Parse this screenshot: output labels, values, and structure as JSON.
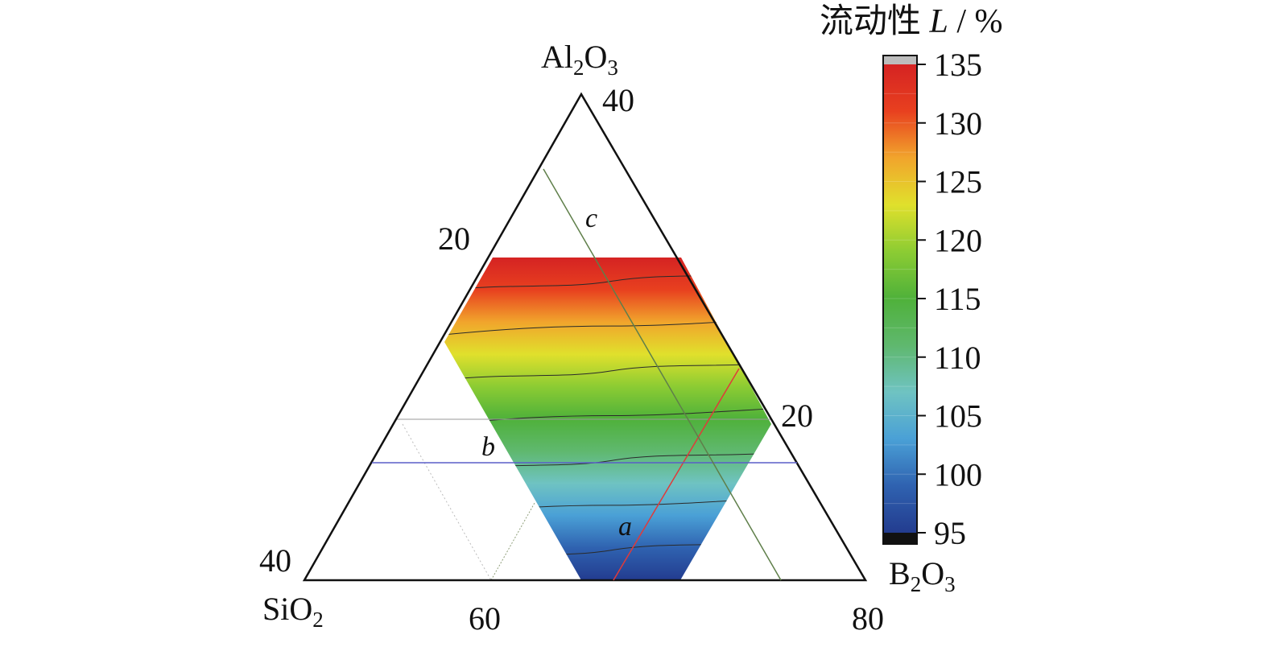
{
  "chart_data": {
    "type": "heatmap",
    "title": "流动性 L / %",
    "title_parts": {
      "prefix": "流动性 ",
      "var": "L",
      "unit": " / %"
    },
    "components": [
      {
        "name": "Al2O3",
        "base": "Al",
        "sub1": "2",
        "mid": "O",
        "sub2": "3",
        "vertex": "top"
      },
      {
        "name": "SiO2",
        "base": "SiO",
        "sub1": "2",
        "vertex": "bottom-left"
      },
      {
        "name": "B2O3",
        "base": "B",
        "sub1": "2",
        "mid": "O",
        "sub2": "3",
        "vertex": "bottom-right"
      }
    ],
    "ranges": {
      "Al2O3": [
        0,
        40
      ],
      "SiO2": [
        40,
        80
      ],
      "B2O3": [
        0,
        40
      ]
    },
    "tick_labels": [
      {
        "text": "40",
        "axis": "Al2O3",
        "where": "top-vertex"
      },
      {
        "text": "20",
        "axis": "Al2O3",
        "where": "left-edge-mid"
      },
      {
        "text": "40",
        "axis": "SiO2",
        "where": "bottom-left-vertex"
      },
      {
        "text": "20",
        "axis": "B2O3",
        "where": "right-edge-mid"
      },
      {
        "text": "60",
        "axis": "bottom",
        "where": "bottom-mid"
      },
      {
        "text": "80",
        "axis": "bottom",
        "where": "bottom-right-vertex"
      }
    ],
    "colorbar": {
      "min": 95,
      "max": 135,
      "ticks": [
        "135",
        "130",
        "125",
        "120",
        "115",
        "110",
        "105",
        "100",
        "95"
      ],
      "colors": [
        "#233c8f",
        "#2f62b0",
        "#4aa0d6",
        "#6fc3c2",
        "#5fb86e",
        "#4fb13a",
        "#8ccc33",
        "#e0e02c",
        "#f1a52c",
        "#e8401f",
        "#d52323"
      ],
      "under_color": "#111111",
      "over_color": "#bdbdbd"
    },
    "field": {
      "description_values": {
        "Al2O3_min": 0,
        "Al2O3_max": 18,
        "L_at_Al2O3_0": 97,
        "L_at_Al2O3_18": 133
      },
      "contours_L": [
        100,
        105,
        110,
        115,
        120,
        125,
        130
      ]
    },
    "lines": [
      {
        "label": "a",
        "color": "#e03a3a"
      },
      {
        "label": "b",
        "color": "#5a5fc8"
      },
      {
        "label": "c",
        "color": "#5f7f4a"
      }
    ]
  }
}
